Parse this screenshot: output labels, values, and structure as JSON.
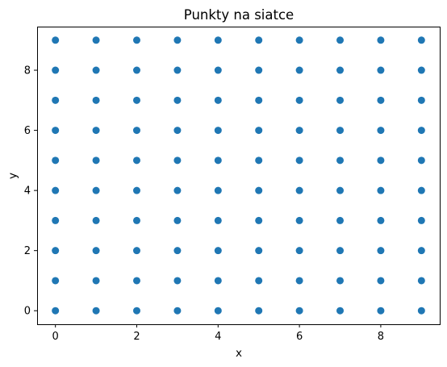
{
  "chart_data": {
    "type": "scatter",
    "title": "Punkty na siatce",
    "xlabel": "x",
    "ylabel": "y",
    "xlim": [
      -0.45,
      9.45
    ],
    "ylim": [
      -0.45,
      9.45
    ],
    "xticks": [
      0,
      2,
      4,
      6,
      8
    ],
    "yticks": [
      0,
      2,
      4,
      6,
      8
    ],
    "grid": false,
    "color": "#1f77b4",
    "series": [
      {
        "points": [
          [
            0,
            0
          ],
          [
            1,
            0
          ],
          [
            2,
            0
          ],
          [
            3,
            0
          ],
          [
            4,
            0
          ],
          [
            5,
            0
          ],
          [
            6,
            0
          ],
          [
            7,
            0
          ],
          [
            8,
            0
          ],
          [
            9,
            0
          ],
          [
            0,
            1
          ],
          [
            1,
            1
          ],
          [
            2,
            1
          ],
          [
            3,
            1
          ],
          [
            4,
            1
          ],
          [
            5,
            1
          ],
          [
            6,
            1
          ],
          [
            7,
            1
          ],
          [
            8,
            1
          ],
          [
            9,
            1
          ],
          [
            0,
            2
          ],
          [
            1,
            2
          ],
          [
            2,
            2
          ],
          [
            3,
            2
          ],
          [
            4,
            2
          ],
          [
            5,
            2
          ],
          [
            6,
            2
          ],
          [
            7,
            2
          ],
          [
            8,
            2
          ],
          [
            9,
            2
          ],
          [
            0,
            3
          ],
          [
            1,
            3
          ],
          [
            2,
            3
          ],
          [
            3,
            3
          ],
          [
            4,
            3
          ],
          [
            5,
            3
          ],
          [
            6,
            3
          ],
          [
            7,
            3
          ],
          [
            8,
            3
          ],
          [
            9,
            3
          ],
          [
            0,
            4
          ],
          [
            1,
            4
          ],
          [
            2,
            4
          ],
          [
            3,
            4
          ],
          [
            4,
            4
          ],
          [
            5,
            4
          ],
          [
            6,
            4
          ],
          [
            7,
            4
          ],
          [
            8,
            4
          ],
          [
            9,
            4
          ],
          [
            0,
            5
          ],
          [
            1,
            5
          ],
          [
            2,
            5
          ],
          [
            3,
            5
          ],
          [
            4,
            5
          ],
          [
            5,
            5
          ],
          [
            6,
            5
          ],
          [
            7,
            5
          ],
          [
            8,
            5
          ],
          [
            9,
            5
          ],
          [
            0,
            6
          ],
          [
            1,
            6
          ],
          [
            2,
            6
          ],
          [
            3,
            6
          ],
          [
            4,
            6
          ],
          [
            5,
            6
          ],
          [
            6,
            6
          ],
          [
            7,
            6
          ],
          [
            8,
            6
          ],
          [
            9,
            6
          ],
          [
            0,
            7
          ],
          [
            1,
            7
          ],
          [
            2,
            7
          ],
          [
            3,
            7
          ],
          [
            4,
            7
          ],
          [
            5,
            7
          ],
          [
            6,
            7
          ],
          [
            7,
            7
          ],
          [
            8,
            7
          ],
          [
            9,
            7
          ],
          [
            0,
            8
          ],
          [
            1,
            8
          ],
          [
            2,
            8
          ],
          [
            3,
            8
          ],
          [
            4,
            8
          ],
          [
            5,
            8
          ],
          [
            6,
            8
          ],
          [
            7,
            8
          ],
          [
            8,
            8
          ],
          [
            9,
            8
          ],
          [
            0,
            9
          ],
          [
            1,
            9
          ],
          [
            2,
            9
          ],
          [
            3,
            9
          ],
          [
            4,
            9
          ],
          [
            5,
            9
          ],
          [
            6,
            9
          ],
          [
            7,
            9
          ],
          [
            8,
            9
          ],
          [
            9,
            9
          ]
        ]
      }
    ]
  }
}
